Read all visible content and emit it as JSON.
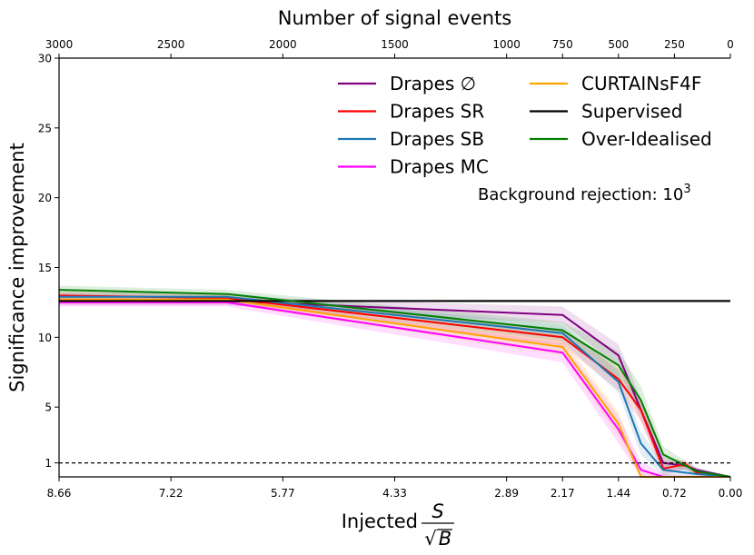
{
  "chart_data": {
    "type": "line",
    "title": "",
    "xlabel": "Injected",
    "xlabel_fraction": {
      "numerator": "S",
      "radical": "√",
      "denominator": "B"
    },
    "ylabel": "Significance improvement",
    "top_xlabel": "Number of signal events",
    "annotation": {
      "text": "Background rejection: 10",
      "superscript": "3"
    },
    "xlim": [
      3000,
      0
    ],
    "ylim": [
      0,
      30
    ],
    "yticks": [
      1,
      5,
      10,
      15,
      20,
      25,
      30
    ],
    "yticks_labels": [
      "1",
      "5",
      "10",
      "15",
      "20",
      "25",
      "30"
    ],
    "top_ticks": [
      3000,
      2500,
      2000,
      1500,
      1000,
      750,
      500,
      250,
      0
    ],
    "top_ticks_labels": [
      "3000",
      "2500",
      "2000",
      "1500",
      "1000",
      "750",
      "500",
      "250",
      "0"
    ],
    "bottom_ticks": [
      3000,
      2500,
      2000,
      1500,
      1000,
      750,
      500,
      250,
      0
    ],
    "bottom_ticks_labels": [
      "8.66",
      "7.22",
      "5.77",
      "4.33",
      "2.89",
      "2.17",
      "1.44",
      "0.72",
      "0.00"
    ],
    "reference_line": {
      "y": 1,
      "style": "dashed",
      "color": "#000000"
    },
    "x": [
      3000,
      2250,
      750,
      500,
      400,
      300,
      200,
      150,
      0
    ],
    "series": [
      {
        "name": "Drapes ∅",
        "color": "#800080",
        "values": [
          12.6,
          12.6,
          11.6,
          8.7,
          4.8,
          1.0,
          0.8,
          0.5,
          0.0
        ],
        "band": [
          0.3,
          0.3,
          0.6,
          0.8,
          0.8,
          0.5,
          0.3,
          0.2,
          0.0
        ]
      },
      {
        "name": "Drapes SR",
        "color": "#ff0000",
        "values": [
          13.0,
          12.8,
          10.0,
          7.0,
          4.8,
          0.6,
          0.9,
          0.3,
          0.0
        ],
        "band": [
          0.3,
          0.3,
          0.6,
          0.8,
          0.8,
          0.5,
          0.3,
          0.2,
          0.0
        ]
      },
      {
        "name": "Drapes SB",
        "color": "#1f77b4",
        "values": [
          12.9,
          12.9,
          10.3,
          6.8,
          2.4,
          0.5,
          0.3,
          0.2,
          0.0
        ],
        "band": [
          0.3,
          0.3,
          0.6,
          0.8,
          0.8,
          0.5,
          0.3,
          0.2,
          0.0
        ]
      },
      {
        "name": "Drapes MC",
        "color": "#ff00ff",
        "values": [
          12.5,
          12.5,
          8.9,
          3.4,
          0.5,
          0.0,
          0.0,
          0.0,
          0.0
        ],
        "band": [
          0.3,
          0.3,
          0.7,
          1.0,
          0.6,
          0.2,
          0.1,
          0.1,
          0.0
        ]
      },
      {
        "name": "CURTAINsF4F",
        "color": "#ffa500",
        "values": [
          12.7,
          12.7,
          9.3,
          3.8,
          0.0,
          0.0,
          0.0,
          0.0,
          0.0
        ],
        "band": [
          0.3,
          0.3,
          0.6,
          0.9,
          0.4,
          0.1,
          0.1,
          0.1,
          0.0
        ]
      },
      {
        "name": "Supervised",
        "color": "#000000",
        "values": [
          12.6,
          12.6,
          12.6,
          12.6,
          12.6,
          12.6,
          12.6,
          12.6,
          12.6
        ],
        "band": [
          0.1,
          0.1,
          0.1,
          0.1,
          0.1,
          0.1,
          0.1,
          0.1,
          0.1
        ]
      },
      {
        "name": "Over-Idealised",
        "color": "#008000",
        "values": [
          13.4,
          13.1,
          10.5,
          8.0,
          5.5,
          1.6,
          0.8,
          0.4,
          0.0
        ],
        "band": [
          0.3,
          0.3,
          0.6,
          1.0,
          1.0,
          0.6,
          0.3,
          0.2,
          0.0
        ]
      }
    ],
    "legend": {
      "placement": "top-right",
      "columns": 2,
      "order": [
        "Drapes ∅",
        "Drapes SR",
        "Drapes SB",
        "Drapes MC",
        "CURTAINsF4F",
        "Supervised",
        "Over-Idealised"
      ]
    }
  }
}
